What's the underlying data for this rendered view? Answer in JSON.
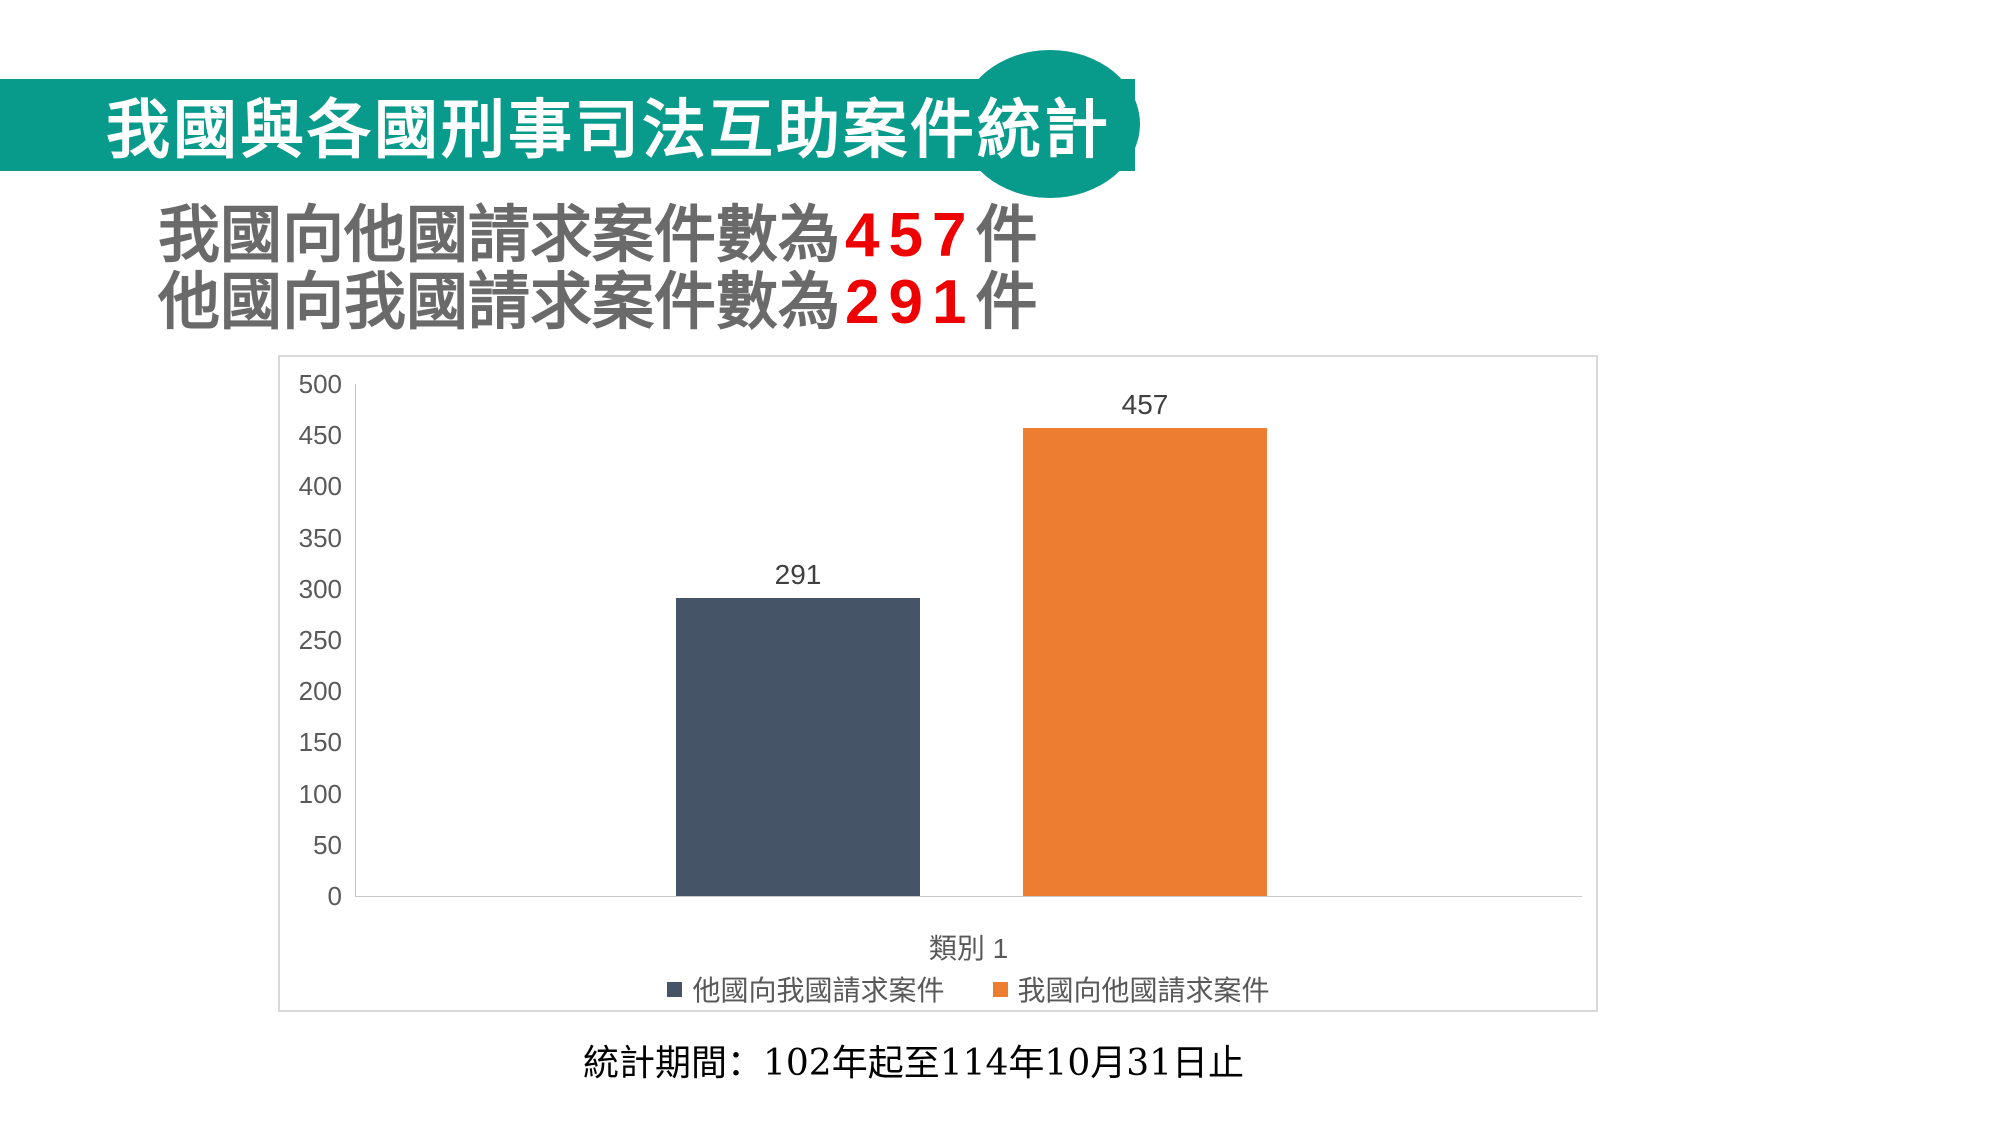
{
  "banner": {
    "title": "我國與各國刑事司法互助案件統計",
    "bg_color": "#089A8A",
    "text_color": "#FFFFFF"
  },
  "headline": {
    "lines": [
      {
        "prefix": "我國向他國請求案件數為",
        "value": "457",
        "suffix": "件"
      },
      {
        "prefix": "他國向我國請求案件數為",
        "value": "291",
        "suffix": "件"
      }
    ],
    "text_color": "#6A6A6A",
    "value_color": "#EE0000"
  },
  "chart_data": {
    "type": "bar",
    "categories": [
      "類別 1"
    ],
    "series": [
      {
        "name": "他國向我國請求案件",
        "values": [
          291
        ],
        "color": "#465468"
      },
      {
        "name": "我國向他國請求案件",
        "values": [
          457
        ],
        "color": "#ED7D31"
      }
    ],
    "ylim": [
      0,
      500
    ],
    "ytick_step": 50,
    "grid": false,
    "legend_position": "bottom",
    "show_data_labels": true,
    "data_labels": [
      "291",
      "457"
    ],
    "axis_color": "#C9C9C9",
    "tick_label_color": "#595959",
    "data_label_color": "#404040",
    "border_color": "#D9D9D9"
  },
  "caption": {
    "text": "統計期間：102年起至114年10月31日止"
  }
}
